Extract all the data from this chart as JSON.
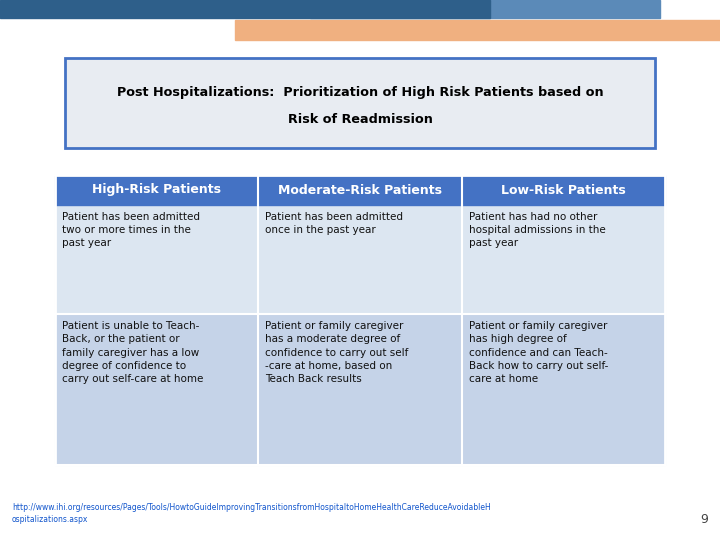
{
  "title_line1": "Post Hospitalizations:  Prioritization of High Risk Patients based on",
  "title_line2": "Risk of Readmission",
  "bg_color": "#ffffff",
  "header_color": "#4472c4",
  "cell_row1_color": "#dce6f1",
  "cell_row2_color": "#c5d3e8",
  "title_box_border": "#4472c4",
  "title_box_bg": "#e8ecf2",
  "decorative_dark_color": "#2e5f8a",
  "decorative_mid_color": "#5b8ab8",
  "decorative_peach_color": "#f0b080",
  "headers": [
    "High-Risk Patients",
    "Moderate-Risk Patients",
    "Low-Risk Patients"
  ],
  "row1": [
    "Patient has been admitted\ntwo or more times in the\npast year",
    "Patient has been admitted\nonce in the past year",
    "Patient has had no other\nhospital admissions in the\npast year"
  ],
  "row2": [
    "Patient is unable to Teach-\nBack, or the patient or\nfamily caregiver has a low\ndegree of confidence to\ncarry out self-care at home",
    "Patient or family caregiver\nhas a moderate degree of\nconfidence to carry out self\n-care at home, based on\nTeach Back results",
    "Patient or family caregiver\nhas high degree of\nconfidence and can Teach-\nBack how to carry out self-\ncare at home"
  ],
  "footer_url_line1": "http://www.ihi.org/resources/Pages/Tools/HowtoGuideImprovingTransitionsfromHospitaltoHomeHealthCareReduceAvoidableH",
  "footer_url_line2": "ospitalizations.aspx",
  "page_num": "9"
}
